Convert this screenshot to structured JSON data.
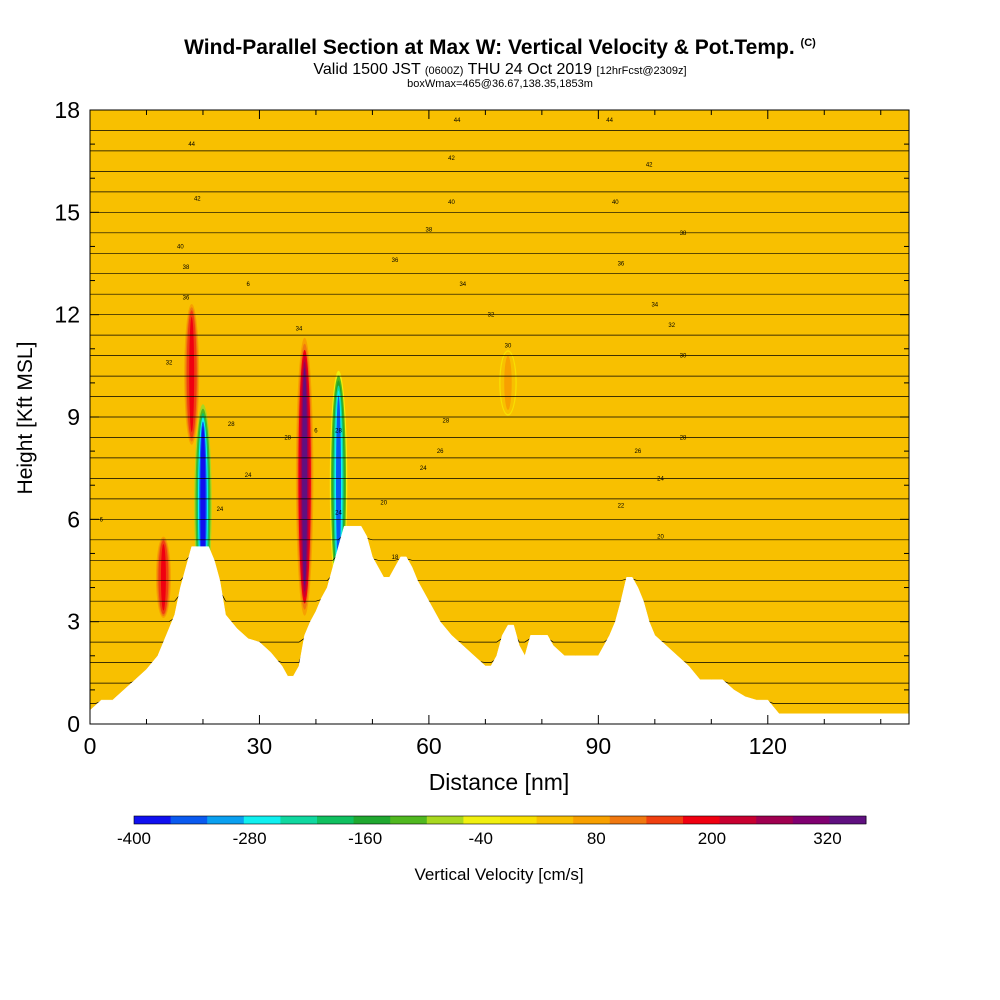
{
  "title": {
    "main": "Wind-Parallel Section at Max W: Vertical Velocity & Pot.Temp.",
    "copyright": "(C)",
    "valid_prefix": "Valid 1500 JST",
    "valid_utc": "(0600Z)",
    "valid_date": "THU 24 Oct 2019",
    "forecast": "[12hrFcst@2309z]",
    "box_info": "boxWmax=465@36.67,138.35,1853m"
  },
  "chart_data": {
    "type": "heatmap",
    "xlabel": "Distance [nm]",
    "ylabel": "Height [Kft MSL]",
    "xlim": [
      0,
      145
    ],
    "ylim": [
      0,
      18
    ],
    "x_ticks": [
      0,
      30,
      60,
      90,
      120
    ],
    "y_ticks": [
      0,
      3,
      6,
      9,
      12,
      15,
      18
    ],
    "colorbar": {
      "label": "Vertical Velocity [cm/s]",
      "tick_labels": [
        -400,
        -280,
        -160,
        -40,
        80,
        200,
        320
      ],
      "range": [
        -400,
        360
      ],
      "colors": [
        "#1010f0",
        "#0a5af0",
        "#0aa0f0",
        "#10f0f0",
        "#10d8a0",
        "#10c060",
        "#20a830",
        "#50b820",
        "#a8d820",
        "#f0f010",
        "#f8e000",
        "#f8c000",
        "#f8a000",
        "#f07810",
        "#f04010",
        "#f00010",
        "#c80030",
        "#a00050",
        "#800070",
        "#601080"
      ]
    },
    "terrain_profile": {
      "x": [
        0,
        2,
        4,
        6,
        8,
        10,
        12,
        14,
        15,
        16,
        17,
        18,
        19,
        20,
        21,
        22,
        23,
        24,
        26,
        28,
        30,
        32,
        34,
        35,
        36,
        37,
        38,
        39,
        40,
        41,
        42,
        43,
        44,
        45,
        46,
        47,
        48,
        49,
        50,
        51,
        52,
        53,
        54,
        55,
        56,
        57,
        58,
        60,
        62,
        64,
        66,
        68,
        70,
        71,
        72,
        73,
        74,
        75,
        76,
        77,
        78,
        80,
        81,
        82,
        84,
        86,
        88,
        90,
        91,
        92,
        93,
        94,
        95,
        96,
        97,
        98,
        99,
        100,
        102,
        104,
        106,
        108,
        110,
        112,
        114,
        116,
        118,
        120,
        121,
        122,
        125,
        130,
        145
      ],
      "y": [
        0.4,
        0.7,
        0.7,
        1.0,
        1.3,
        1.6,
        2.0,
        2.8,
        3.2,
        4.0,
        4.6,
        5.2,
        5.2,
        5.2,
        5.2,
        4.8,
        4.2,
        3.2,
        2.8,
        2.5,
        2.4,
        2.1,
        1.7,
        1.4,
        1.4,
        1.7,
        2.6,
        3.0,
        3.3,
        3.7,
        4.0,
        4.6,
        5.2,
        5.8,
        5.8,
        5.8,
        5.8,
        5.5,
        4.9,
        4.6,
        4.3,
        4.3,
        4.6,
        4.9,
        4.9,
        4.6,
        4.2,
        3.6,
        3.0,
        2.6,
        2.3,
        2.0,
        1.7,
        1.7,
        2.0,
        2.6,
        2.9,
        2.9,
        2.3,
        2.0,
        2.6,
        2.6,
        2.6,
        2.3,
        2.0,
        2.0,
        2.0,
        2.0,
        2.3,
        2.6,
        3.0,
        3.6,
        4.3,
        4.3,
        4.0,
        3.6,
        3.0,
        2.6,
        2.3,
        2.0,
        1.7,
        1.3,
        1.3,
        1.3,
        1.0,
        0.8,
        0.7,
        0.7,
        0.5,
        0.3,
        0.3,
        0.3,
        0.3
      ]
    },
    "theta_contour_labels": [
      {
        "x": 2,
        "y": 6.0,
        "text": "6"
      },
      {
        "x": 18,
        "y": 17.0,
        "text": "44"
      },
      {
        "x": 19,
        "y": 15.4,
        "text": "42"
      },
      {
        "x": 16,
        "y": 14.0,
        "text": "40"
      },
      {
        "x": 17,
        "y": 13.4,
        "text": "38"
      },
      {
        "x": 17,
        "y": 12.5,
        "text": "36"
      },
      {
        "x": 14,
        "y": 10.6,
        "text": "32"
      },
      {
        "x": 25,
        "y": 8.8,
        "text": "28"
      },
      {
        "x": 28,
        "y": 12.9,
        "text": "6"
      },
      {
        "x": 28,
        "y": 7.3,
        "text": "24"
      },
      {
        "x": 23,
        "y": 6.3,
        "text": "24"
      },
      {
        "x": 37,
        "y": 11.6,
        "text": "34"
      },
      {
        "x": 35,
        "y": 8.4,
        "text": "28"
      },
      {
        "x": 40,
        "y": 8.6,
        "text": "6"
      },
      {
        "x": 44,
        "y": 8.6,
        "text": "28"
      },
      {
        "x": 44,
        "y": 6.2,
        "text": "24"
      },
      {
        "x": 52,
        "y": 6.5,
        "text": "20"
      },
      {
        "x": 54,
        "y": 4.9,
        "text": "18"
      },
      {
        "x": 54,
        "y": 13.6,
        "text": "36"
      },
      {
        "x": 60,
        "y": 14.5,
        "text": "38"
      },
      {
        "x": 64,
        "y": 15.3,
        "text": "40"
      },
      {
        "x": 64,
        "y": 16.6,
        "text": "42"
      },
      {
        "x": 65,
        "y": 17.7,
        "text": "44"
      },
      {
        "x": 66,
        "y": 12.9,
        "text": "34"
      },
      {
        "x": 71,
        "y": 12.0,
        "text": "32"
      },
      {
        "x": 74,
        "y": 11.1,
        "text": "30"
      },
      {
        "x": 63,
        "y": 8.9,
        "text": "28"
      },
      {
        "x": 62,
        "y": 8.0,
        "text": "26"
      },
      {
        "x": 59,
        "y": 7.5,
        "text": "24"
      },
      {
        "x": 92,
        "y": 17.7,
        "text": "44"
      },
      {
        "x": 99,
        "y": 16.4,
        "text": "42"
      },
      {
        "x": 93,
        "y": 15.3,
        "text": "40"
      },
      {
        "x": 105,
        "y": 14.4,
        "text": "38"
      },
      {
        "x": 94,
        "y": 13.5,
        "text": "36"
      },
      {
        "x": 100,
        "y": 12.3,
        "text": "34"
      },
      {
        "x": 103,
        "y": 11.7,
        "text": "32"
      },
      {
        "x": 105,
        "y": 10.8,
        "text": "30"
      },
      {
        "x": 105,
        "y": 8.4,
        "text": "28"
      },
      {
        "x": 97,
        "y": 8.0,
        "text": "26"
      },
      {
        "x": 101,
        "y": 7.2,
        "text": "24"
      },
      {
        "x": 94,
        "y": 6.4,
        "text": "22"
      },
      {
        "x": 101,
        "y": 5.5,
        "text": "20"
      }
    ],
    "velocity_features": [
      {
        "kind": "updraft",
        "x": 13,
        "y_bottom": 3.0,
        "y_top": 5.6,
        "value": 200
      },
      {
        "kind": "downdraft",
        "x": 20,
        "y_bottom": 3.4,
        "y_top": 9.5,
        "value": -400
      },
      {
        "kind": "updraft",
        "x": 18,
        "y_bottom": 8.0,
        "y_top": 12.5,
        "value": 200
      },
      {
        "kind": "updraft",
        "x": 38,
        "y_bottom": 3.0,
        "y_top": 11.5,
        "value": 340
      },
      {
        "kind": "downdraft",
        "x": 44,
        "y_bottom": 3.6,
        "y_top": 10.5,
        "value": -340
      },
      {
        "kind": "updraft",
        "x": 74,
        "y_bottom": 9.0,
        "y_top": 11.0,
        "value": 80
      }
    ]
  }
}
